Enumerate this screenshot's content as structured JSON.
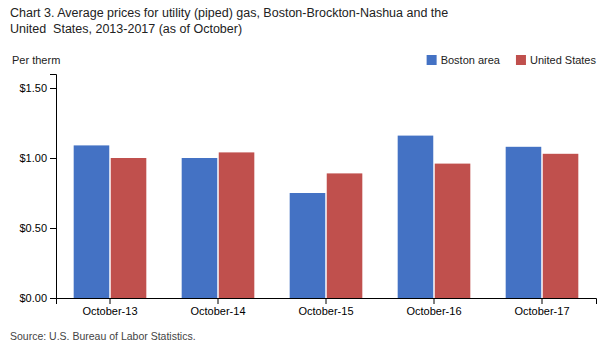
{
  "chart_data": {
    "type": "bar",
    "title": [
      "Chart 3. Average prices for utility (piped) gas, Boston-Brockton-Nashua and the",
      "United  States, 2013-2017 (as of October)"
    ],
    "y_label": "Per therm",
    "source": "Source: U.S. Bureau of Labor Statistics.",
    "categories": [
      "October-13",
      "October-14",
      "October-15",
      "October-16",
      "October-17"
    ],
    "series": [
      {
        "name": "Boston area",
        "color": "#4472C4",
        "values": [
          1.09,
          1.0,
          0.75,
          1.16,
          1.08
        ]
      },
      {
        "name": "United States",
        "color": "#C0504D",
        "values": [
          1.0,
          1.04,
          0.89,
          0.96,
          1.03
        ]
      }
    ],
    "ylim": [
      0,
      1.6
    ],
    "yticks": [
      {
        "value": 0.0,
        "label": "$0.00"
      },
      {
        "value": 0.5,
        "label": "$0.50"
      },
      {
        "value": 1.0,
        "label": "$1.00"
      },
      {
        "value": 1.5,
        "label": "$1.50"
      }
    ],
    "grid": false,
    "legend": "upper right"
  }
}
